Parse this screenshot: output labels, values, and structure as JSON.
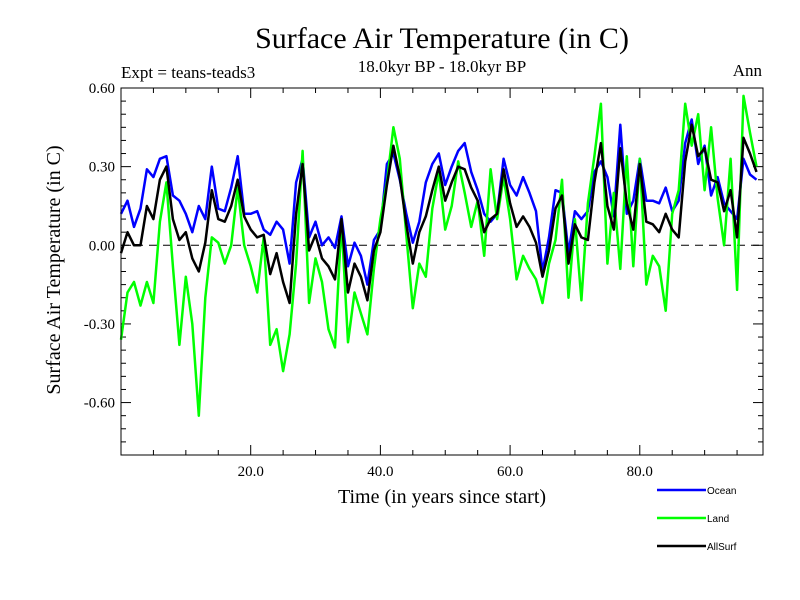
{
  "chart_data": {
    "type": "line",
    "title": "Surface Air Temperature (in C)",
    "subtitle": "18.0kyr BP - 18.0kyr BP",
    "expt_label": "Expt = teans-teads3",
    "period_label": "Ann",
    "xlabel": "Time (in years since start)",
    "ylabel": "Surface Air Temperature (in C)",
    "xlim": [
      0,
      99
    ],
    "ylim": [
      -0.8,
      0.6
    ],
    "x_ticks": [
      20,
      40,
      60,
      80
    ],
    "x_tick_labels": [
      "20.0",
      "40.0",
      "60.0",
      "80.0"
    ],
    "y_ticks": [
      0.6,
      0.3,
      0.0,
      -0.3,
      -0.6
    ],
    "y_tick_labels": [
      "0.60",
      "0.30",
      "0.00",
      "-0.30",
      "-0.60"
    ],
    "zero_line": true,
    "x_start": 0,
    "series": [
      {
        "name": "Ocean",
        "color": "#0000ff",
        "values": [
          0.12,
          0.17,
          0.07,
          0.14,
          0.29,
          0.26,
          0.33,
          0.34,
          0.19,
          0.17,
          0.12,
          0.05,
          0.15,
          0.1,
          0.3,
          0.14,
          0.13,
          0.22,
          0.34,
          0.12,
          0.12,
          0.13,
          0.06,
          0.04,
          0.09,
          0.06,
          -0.07,
          0.24,
          0.33,
          0.03,
          0.09,
          0.0,
          0.03,
          -0.01,
          0.11,
          -0.08,
          0.01,
          -0.04,
          -0.15,
          0.02,
          0.06,
          0.31,
          0.35,
          0.25,
          0.12,
          0.01,
          0.09,
          0.24,
          0.31,
          0.35,
          0.23,
          0.3,
          0.36,
          0.39,
          0.28,
          0.21,
          0.12,
          0.09,
          0.12,
          0.33,
          0.23,
          0.19,
          0.26,
          0.2,
          0.13,
          -0.1,
          0.03,
          0.21,
          0.2,
          -0.03,
          0.13,
          0.1,
          0.13,
          0.28,
          0.32,
          0.26,
          0.11,
          0.46,
          0.12,
          0.17,
          0.33,
          0.17,
          0.17,
          0.16,
          0.22,
          0.13,
          0.17,
          0.39,
          0.48,
          0.31,
          0.38,
          0.19,
          0.26,
          0.16,
          0.13,
          0.1,
          0.33,
          0.27,
          0.25
        ]
      },
      {
        "name": "Land",
        "color": "#00ff00",
        "values": [
          -0.36,
          -0.18,
          -0.14,
          -0.23,
          -0.14,
          -0.22,
          0.09,
          0.24,
          -0.08,
          -0.38,
          -0.12,
          -0.3,
          -0.65,
          -0.2,
          0.03,
          0.01,
          -0.07,
          0.0,
          0.22,
          0.0,
          -0.08,
          -0.18,
          0.03,
          -0.38,
          -0.32,
          -0.48,
          -0.34,
          -0.07,
          0.36,
          -0.22,
          -0.05,
          -0.14,
          -0.32,
          -0.39,
          0.09,
          -0.37,
          -0.18,
          -0.26,
          -0.34,
          -0.09,
          0.1,
          0.24,
          0.45,
          0.33,
          0.04,
          -0.24,
          -0.07,
          -0.12,
          0.14,
          0.28,
          0.06,
          0.15,
          0.32,
          0.2,
          0.07,
          0.17,
          -0.04,
          0.29,
          0.1,
          0.26,
          0.1,
          -0.13,
          -0.04,
          -0.09,
          -0.13,
          -0.22,
          -0.07,
          0.02,
          0.25,
          -0.2,
          0.1,
          -0.21,
          0.16,
          0.34,
          0.54,
          -0.07,
          0.2,
          -0.09,
          0.34,
          -0.08,
          0.33,
          -0.15,
          -0.04,
          -0.08,
          -0.25,
          0.12,
          0.21,
          0.54,
          0.38,
          0.5,
          0.21,
          0.45,
          0.18,
          0.0,
          0.33,
          -0.17,
          0.57,
          0.43,
          0.3
        ]
      },
      {
        "name": "AllSurf",
        "color": "#000000",
        "values": [
          -0.03,
          0.05,
          0.0,
          0.0,
          0.15,
          0.1,
          0.25,
          0.3,
          0.1,
          0.02,
          0.05,
          -0.05,
          -0.1,
          0.01,
          0.21,
          0.1,
          0.09,
          0.15,
          0.25,
          0.11,
          0.06,
          0.03,
          0.04,
          -0.11,
          -0.03,
          -0.14,
          -0.22,
          0.12,
          0.31,
          -0.02,
          0.04,
          -0.05,
          -0.08,
          -0.13,
          0.1,
          -0.18,
          -0.07,
          -0.12,
          -0.21,
          -0.02,
          0.05,
          0.23,
          0.38,
          0.26,
          0.08,
          -0.07,
          0.05,
          0.11,
          0.21,
          0.3,
          0.17,
          0.24,
          0.3,
          0.29,
          0.22,
          0.17,
          0.05,
          0.1,
          0.12,
          0.29,
          0.16,
          0.07,
          0.11,
          0.07,
          0.01,
          -0.12,
          -0.02,
          0.14,
          0.19,
          -0.07,
          0.08,
          0.03,
          0.02,
          0.24,
          0.39,
          0.15,
          0.06,
          0.37,
          0.16,
          0.06,
          0.31,
          0.09,
          0.08,
          0.05,
          0.12,
          0.06,
          0.03,
          0.32,
          0.46,
          0.34,
          0.37,
          0.25,
          0.24,
          0.13,
          0.21,
          0.03,
          0.41,
          0.35,
          0.28
        ]
      }
    ]
  }
}
